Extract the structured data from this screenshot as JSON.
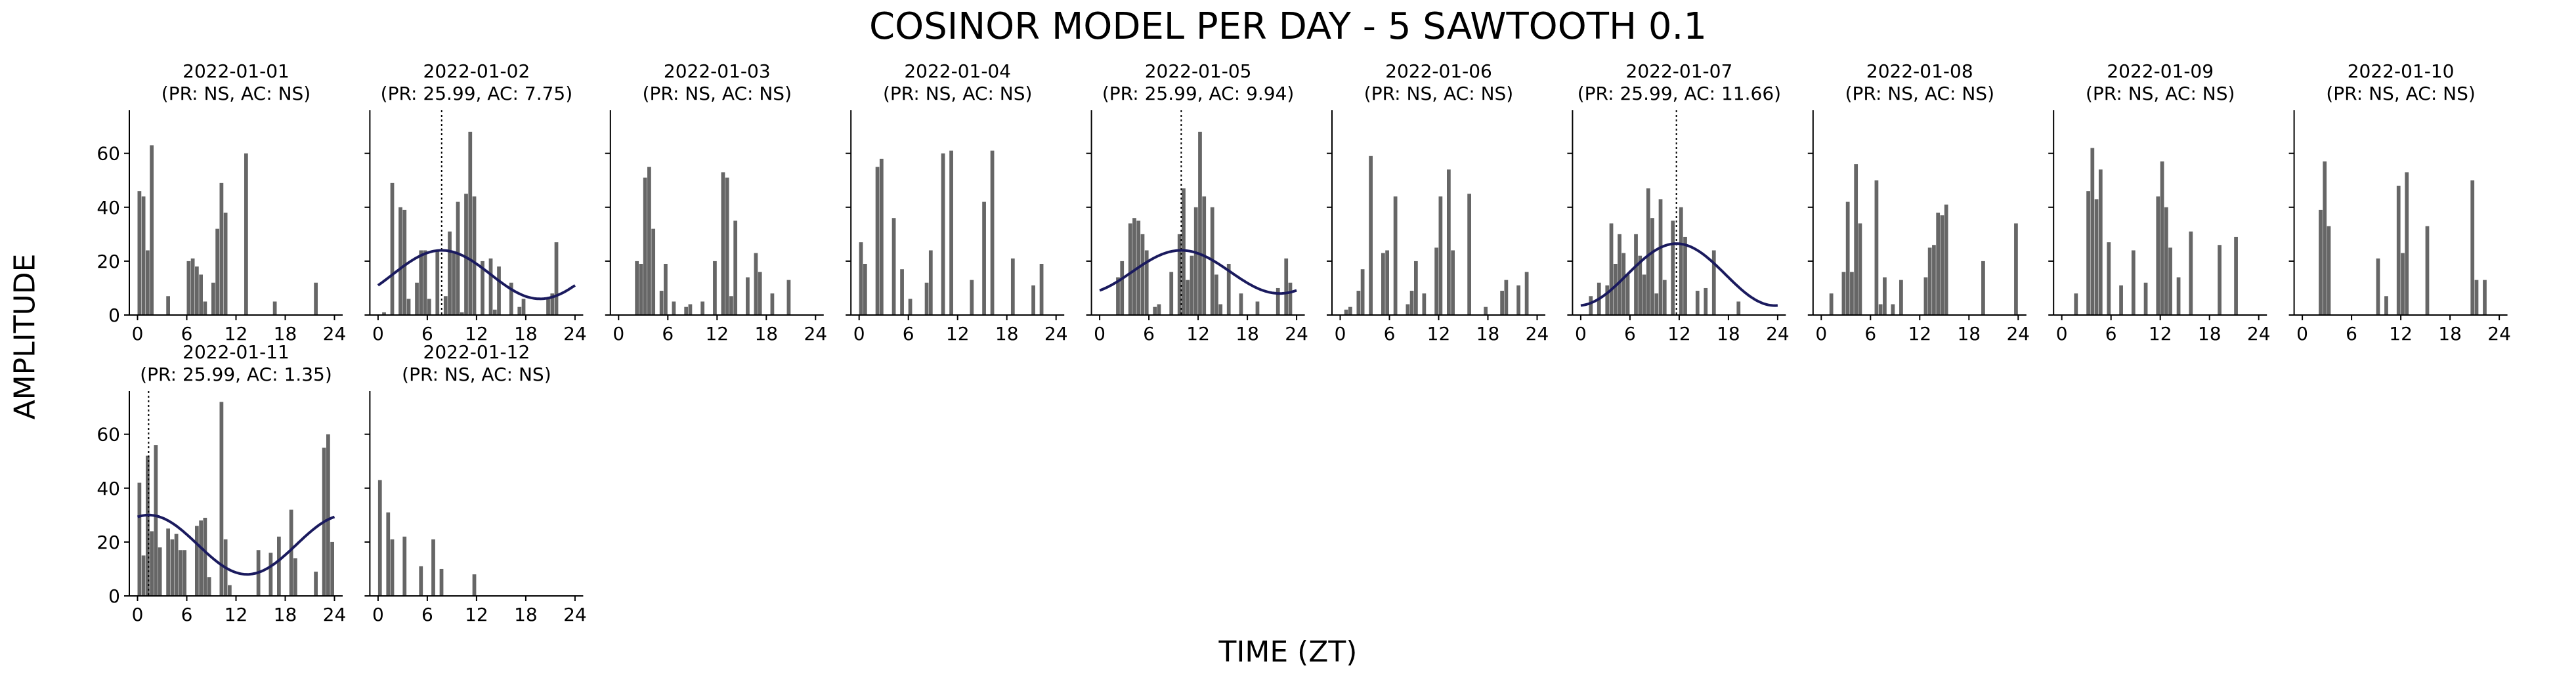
{
  "figure": {
    "title": "COSINOR MODEL PER DAY - 5 SAWTOOTH 0.1",
    "xlabel": "TIME (ZT)",
    "ylabel": "AMPLITUDE"
  },
  "colors": {
    "bar": "#666666",
    "fit": "#1a1a5e",
    "axis": "#000000"
  },
  "chart_data": [
    {
      "type": "bar",
      "title": "2022-01-01",
      "subtitle": "(PR: NS, AC: NS)",
      "xlim": [
        -1,
        25
      ],
      "ylim": [
        0,
        76
      ],
      "xticks": [
        0,
        6,
        12,
        18,
        24
      ],
      "yticks": [
        0,
        20,
        40,
        60
      ],
      "values": [
        46,
        44,
        24,
        63,
        0,
        0,
        0,
        7,
        0,
        0,
        0,
        0,
        20,
        21,
        18,
        15,
        5,
        0,
        12,
        32,
        49,
        38,
        0,
        0,
        0,
        0,
        60,
        0,
        0,
        0,
        0,
        0,
        0,
        5,
        0,
        0,
        0,
        0,
        0,
        0,
        0,
        0,
        0,
        12,
        0,
        0,
        0,
        0
      ],
      "fit": null,
      "acrophase": null
    },
    {
      "type": "bar",
      "title": "2022-01-02",
      "subtitle": "(PR: 25.99, AC: 7.75)",
      "xlim": [
        -1,
        25
      ],
      "ylim": [
        0,
        76
      ],
      "xticks": [
        0,
        6,
        12,
        18,
        24
      ],
      "yticks": [
        0,
        20,
        40,
        60
      ],
      "values": [
        0,
        1,
        0,
        49,
        0,
        40,
        39,
        6,
        0,
        12,
        24,
        24,
        6,
        0,
        24,
        0,
        7,
        31,
        23,
        42,
        1,
        45,
        68,
        44,
        0,
        20,
        0,
        21,
        2,
        18,
        0,
        0,
        12,
        0,
        3,
        6,
        0,
        0,
        0,
        0,
        0,
        6,
        8,
        27,
        0,
        0,
        0,
        0
      ],
      "fit": {
        "mesor": 15,
        "amplitude": 9,
        "acrophase": 7.75,
        "period": 24,
        "x_start": 0,
        "x_end": 24
      },
      "acrophase": 7.75
    },
    {
      "type": "bar",
      "title": "2022-01-03",
      "subtitle": "(PR: NS, AC: NS)",
      "xlim": [
        -1,
        25
      ],
      "ylim": [
        0,
        76
      ],
      "xticks": [
        0,
        6,
        12,
        18,
        24
      ],
      "yticks": [
        0,
        20,
        40,
        60
      ],
      "values": [
        0,
        0,
        0,
        0,
        20,
        19,
        51,
        55,
        32,
        0,
        9,
        19,
        0,
        5,
        0,
        0,
        3,
        4,
        0,
        0,
        5,
        0,
        0,
        20,
        0,
        53,
        51,
        7,
        35,
        0,
        0,
        14,
        0,
        23,
        16,
        0,
        0,
        8,
        0,
        0,
        0,
        13,
        0,
        0,
        0,
        0,
        0,
        0
      ],
      "fit": null,
      "acrophase": null
    },
    {
      "type": "bar",
      "title": "2022-01-04",
      "subtitle": "(PR: NS, AC: NS)",
      "xlim": [
        -1,
        25
      ],
      "ylim": [
        0,
        76
      ],
      "xticks": [
        0,
        6,
        12,
        18,
        24
      ],
      "yticks": [
        0,
        20,
        40,
        60
      ],
      "values": [
        27,
        19,
        0,
        0,
        55,
        58,
        0,
        0,
        36,
        0,
        17,
        0,
        6,
        0,
        0,
        0,
        12,
        24,
        0,
        0,
        60,
        0,
        61,
        0,
        0,
        0,
        0,
        13,
        0,
        0,
        42,
        0,
        61,
        0,
        0,
        0,
        0,
        21,
        0,
        0,
        0,
        0,
        11,
        0,
        19,
        0,
        0,
        0
      ],
      "fit": null,
      "acrophase": null
    },
    {
      "type": "bar",
      "title": "2022-01-05",
      "subtitle": "(PR: 25.99, AC: 9.94)",
      "xlim": [
        -1,
        25
      ],
      "ylim": [
        0,
        76
      ],
      "xticks": [
        0,
        6,
        12,
        18,
        24
      ],
      "yticks": [
        0,
        20,
        40,
        60
      ],
      "values": [
        0,
        0,
        0,
        0,
        14,
        20,
        0,
        34,
        36,
        35,
        30,
        24,
        0,
        3,
        4,
        0,
        0,
        16,
        0,
        30,
        47,
        13,
        22,
        40,
        68,
        44,
        0,
        40,
        15,
        4,
        0,
        19,
        0,
        0,
        8,
        0,
        0,
        0,
        5,
        0,
        0,
        0,
        0,
        10,
        0,
        21,
        12,
        0
      ],
      "fit": {
        "mesor": 16,
        "amplitude": 8,
        "acrophase": 9.94,
        "period": 24,
        "x_start": 0,
        "x_end": 24
      },
      "acrophase": 9.94
    },
    {
      "type": "bar",
      "title": "2022-01-06",
      "subtitle": "(PR: NS, AC: NS)",
      "xlim": [
        -1,
        25
      ],
      "ylim": [
        0,
        76
      ],
      "xticks": [
        0,
        6,
        12,
        18,
        24
      ],
      "yticks": [
        0,
        20,
        40,
        60
      ],
      "values": [
        0,
        2,
        3,
        0,
        9,
        17,
        0,
        59,
        0,
        0,
        23,
        24,
        0,
        44,
        0,
        0,
        4,
        9,
        20,
        0,
        8,
        0,
        0,
        25,
        44,
        0,
        54,
        24,
        0,
        0,
        0,
        45,
        0,
        0,
        0,
        3,
        0,
        0,
        0,
        9,
        13,
        0,
        0,
        11,
        0,
        16,
        0,
        0
      ],
      "fit": null,
      "acrophase": null
    },
    {
      "type": "bar",
      "title": "2022-01-07",
      "subtitle": "(PR: 25.99, AC: 11.66)",
      "xlim": [
        -1,
        25
      ],
      "ylim": [
        0,
        76
      ],
      "xticks": [
        0,
        6,
        12,
        18,
        24
      ],
      "yticks": [
        0,
        20,
        40,
        60
      ],
      "values": [
        0,
        0,
        7,
        0,
        12,
        0,
        11,
        34,
        19,
        30,
        23,
        15,
        0,
        30,
        22,
        15,
        47,
        36,
        8,
        43,
        13,
        0,
        35,
        0,
        40,
        29,
        0,
        0,
        9,
        0,
        10,
        0,
        24,
        0,
        0,
        0,
        0,
        0,
        5,
        0,
        0,
        0,
        0,
        0,
        0,
        0,
        0,
        0
      ],
      "fit": {
        "mesor": 15,
        "amplitude": 11.5,
        "acrophase": 11.66,
        "period": 24,
        "x_start": 0,
        "x_end": 24
      },
      "acrophase": 11.66
    },
    {
      "type": "bar",
      "title": "2022-01-08",
      "subtitle": "(PR: NS, AC: NS)",
      "xlim": [
        -1,
        25
      ],
      "ylim": [
        0,
        76
      ],
      "xticks": [
        0,
        6,
        12,
        18,
        24
      ],
      "yticks": [
        0,
        20,
        40,
        60
      ],
      "values": [
        0,
        0,
        8,
        0,
        0,
        16,
        42,
        16,
        56,
        34,
        0,
        0,
        0,
        50,
        4,
        14,
        0,
        4,
        0,
        13,
        0,
        0,
        0,
        0,
        0,
        14,
        25,
        26,
        38,
        37,
        41,
        0,
        0,
        0,
        0,
        0,
        0,
        0,
        0,
        20,
        0,
        0,
        0,
        0,
        0,
        0,
        0,
        34
      ],
      "fit": null,
      "acrophase": null
    },
    {
      "type": "bar",
      "title": "2022-01-09",
      "subtitle": "(PR: NS, AC: NS)",
      "xlim": [
        -1,
        25
      ],
      "ylim": [
        0,
        76
      ],
      "xticks": [
        0,
        6,
        12,
        18,
        24
      ],
      "yticks": [
        0,
        20,
        40,
        60
      ],
      "values": [
        0,
        0,
        0,
        8,
        0,
        0,
        46,
        62,
        43,
        54,
        0,
        27,
        0,
        0,
        11,
        0,
        0,
        24,
        0,
        0,
        12,
        0,
        0,
        44,
        57,
        40,
        25,
        0,
        14,
        0,
        0,
        31,
        0,
        0,
        0,
        0,
        0,
        0,
        26,
        0,
        0,
        0,
        29,
        0,
        0,
        0,
        0,
        0
      ],
      "fit": null,
      "acrophase": null
    },
    {
      "type": "bar",
      "title": "2022-01-10",
      "subtitle": "(PR: NS, AC: NS)",
      "xlim": [
        -1,
        25
      ],
      "ylim": [
        0,
        76
      ],
      "xticks": [
        0,
        6,
        12,
        18,
        24
      ],
      "yticks": [
        0,
        20,
        40,
        60
      ],
      "values": [
        0,
        0,
        0,
        0,
        39,
        57,
        33,
        0,
        0,
        0,
        0,
        0,
        0,
        0,
        0,
        0,
        0,
        0,
        21,
        0,
        7,
        0,
        0,
        48,
        23,
        53,
        0,
        0,
        0,
        0,
        33,
        0,
        0,
        0,
        0,
        0,
        0,
        0,
        0,
        0,
        0,
        50,
        13,
        0,
        13,
        0,
        0,
        0
      ],
      "fit": null,
      "acrophase": null
    },
    {
      "type": "bar",
      "title": "2022-01-11",
      "subtitle": "(PR: 25.99, AC: 1.35)",
      "xlim": [
        -1,
        25
      ],
      "ylim": [
        0,
        76
      ],
      "xticks": [
        0,
        6,
        12,
        18,
        24
      ],
      "yticks": [
        0,
        20,
        40,
        60
      ],
      "values": [
        42,
        15,
        52,
        24,
        56,
        18,
        0,
        25,
        21,
        23,
        17,
        17,
        0,
        0,
        26,
        28,
        29,
        7,
        0,
        0,
        72,
        21,
        4,
        0,
        0,
        0,
        0,
        0,
        0,
        17,
        0,
        0,
        16,
        0,
        22,
        0,
        0,
        32,
        14,
        0,
        0,
        0,
        0,
        9,
        0,
        55,
        60,
        20
      ],
      "fit": {
        "mesor": 19,
        "amplitude": 11,
        "acrophase": 1.35,
        "period": 24,
        "x_start": 0,
        "x_end": 24
      },
      "acrophase": 1.35
    },
    {
      "type": "bar",
      "title": "2022-01-12",
      "subtitle": "(PR: NS, AC: NS)",
      "xlim": [
        -1,
        25
      ],
      "ylim": [
        0,
        76
      ],
      "xticks": [
        0,
        6,
        12,
        18,
        24
      ],
      "yticks": [
        0,
        20,
        40,
        60
      ],
      "values": [
        43,
        0,
        31,
        21,
        0,
        0,
        22,
        0,
        0,
        0,
        11,
        0,
        0,
        21,
        0,
        10,
        0,
        0,
        0,
        0,
        0,
        0,
        0,
        8,
        0,
        0,
        0,
        0,
        0,
        0,
        0,
        0,
        0,
        0,
        0,
        0,
        0,
        0,
        0,
        0,
        0,
        0,
        0,
        0,
        0,
        0,
        0,
        0
      ],
      "fit": null,
      "acrophase": null
    }
  ]
}
